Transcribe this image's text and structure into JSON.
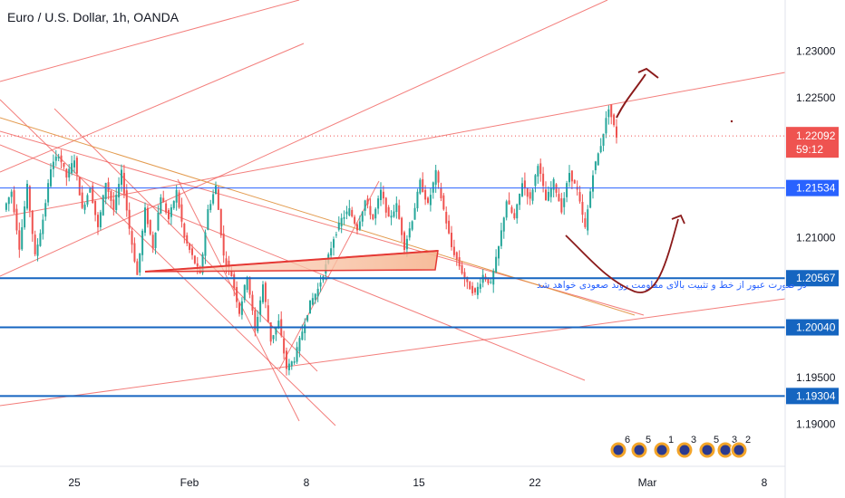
{
  "chart_data": {
    "type": "candlestick",
    "title": "Euro / U.S. Dollar, 1h, OANDA",
    "symbol": "EURUSD",
    "interval": "1h",
    "broker": "OANDA",
    "x_ticks": [
      "25",
      "Feb",
      "8",
      "15",
      "22",
      "Mar",
      "8"
    ],
    "y_ticks": [
      "1.23000",
      "1.22500",
      "1.21000",
      "1.19500",
      "1.19000"
    ],
    "y_range": [
      1.1855,
      1.2355
    ],
    "price_tag": {
      "price": "1.22092",
      "countdown": "59:12",
      "color": "#ef5350"
    },
    "horizontal_levels": [
      {
        "price": 1.21534,
        "label": "1.21534",
        "color": "#2962ff"
      },
      {
        "price": 1.20567,
        "label": "1.20567",
        "color": "#1565c0"
      },
      {
        "price": 1.2004,
        "label": "1.20040",
        "color": "#1565c0"
      },
      {
        "price": 1.19304,
        "label": "1.19304",
        "color": "#1565c0"
      }
    ],
    "annotation": "در صورت عبور از خط و تثبیت بالای مقاومت روند صعودی خواهد شد",
    "events": [
      "6",
      "5",
      "1",
      "3",
      "5",
      "3",
      "2"
    ],
    "price_path": [
      [
        1.213,
        1.215,
        1.209,
        1.2155,
        1.208,
        1.212,
        1.2175,
        1.219,
        1.2165,
        1.2185,
        1.213,
        1.2155,
        1.211,
        1.216,
        1.213
      ],
      [
        1.217,
        1.211,
        1.206,
        1.213,
        1.209,
        1.2145,
        1.212,
        1.215,
        1.21,
        1.208,
        1.206,
        1.213,
        1.2155,
        1.208,
        1.206
      ],
      [
        1.202,
        1.206,
        1.2,
        1.205,
        1.199,
        1.201,
        1.196,
        1.197,
        1.2,
        1.203,
        1.2045,
        1.207,
        1.21,
        1.212
      ],
      [
        1.213,
        1.211,
        1.214,
        1.212,
        1.215,
        1.212,
        1.2135,
        1.209,
        1.212,
        1.216,
        1.2135,
        1.217,
        1.213,
        1.209
      ],
      [
        1.207,
        1.205,
        1.204,
        1.206,
        1.205,
        1.209,
        1.214,
        1.212,
        1.216,
        1.214,
        1.218,
        1.214,
        1.216,
        1.213,
        1.217,
        1.215,
        1.211,
        1.217,
        1.22,
        1.224,
        1.2209
      ]
    ],
    "colors": {
      "up": "#26a69a",
      "down": "#ef5350",
      "trend": "#ef5350",
      "level": "#2962ff",
      "sketch": "#8b1a1a"
    }
  }
}
